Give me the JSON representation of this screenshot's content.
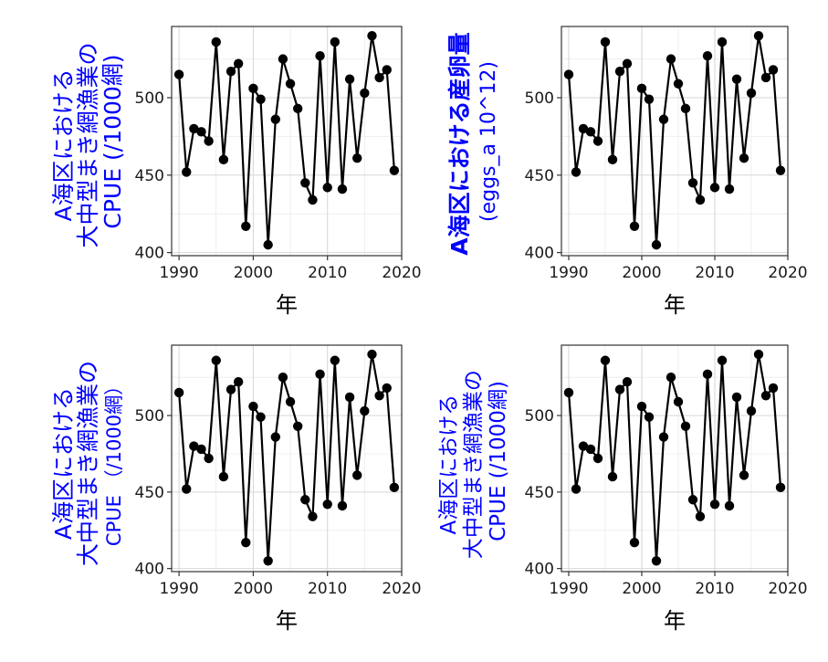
{
  "colors": {
    "ylabel": "#0000ff",
    "series": "#000000",
    "grid": "#d6d6d6"
  },
  "chart_data": [
    {
      "type": "line",
      "xlabel": "年",
      "ylabel_lines": [
        "A海区における",
        "大中型まき網漁業の",
        "CPUE (/1000網)"
      ],
      "ylabel_weight": "normal",
      "xlim": [
        1989,
        2020
      ],
      "ylim": [
        398,
        546
      ],
      "xticks": [
        1990,
        2000,
        2010,
        2020
      ],
      "yticks": [
        400,
        450,
        500
      ],
      "grid": true,
      "x": [
        1990,
        1991,
        1992,
        1993,
        1994,
        1995,
        1996,
        1997,
        1998,
        1999,
        2000,
        2001,
        2002,
        2003,
        2004,
        2005,
        2006,
        2007,
        2008,
        2009,
        2010,
        2011,
        2012,
        2013,
        2014,
        2015,
        2016,
        2017,
        2018,
        2019
      ],
      "values": [
        515,
        452,
        480,
        478,
        472,
        536,
        460,
        517,
        522,
        417,
        506,
        499,
        405,
        486,
        525,
        509,
        493,
        445,
        434,
        527,
        442,
        536,
        441,
        512,
        461,
        503,
        540,
        513,
        518,
        453
      ]
    },
    {
      "type": "line",
      "xlabel": "年",
      "ylabel_lines": [
        "A海区における産卵量",
        "(eggs_a 10^12)"
      ],
      "ylabel_weight": "mixed",
      "xlim": [
        1989,
        2020
      ],
      "ylim": [
        398,
        546
      ],
      "xticks": [
        1990,
        2000,
        2010,
        2020
      ],
      "yticks": [
        400,
        450,
        500
      ],
      "grid": true,
      "x": [
        1990,
        1991,
        1992,
        1993,
        1994,
        1995,
        1996,
        1997,
        1998,
        1999,
        2000,
        2001,
        2002,
        2003,
        2004,
        2005,
        2006,
        2007,
        2008,
        2009,
        2010,
        2011,
        2012,
        2013,
        2014,
        2015,
        2016,
        2017,
        2018,
        2019
      ],
      "values": [
        515,
        452,
        480,
        478,
        472,
        536,
        460,
        517,
        522,
        417,
        506,
        499,
        405,
        486,
        525,
        509,
        493,
        445,
        434,
        527,
        442,
        536,
        441,
        512,
        461,
        503,
        540,
        513,
        518,
        453
      ]
    },
    {
      "type": "line",
      "xlabel": "年",
      "ylabel_lines": [
        "A海区における",
        "大中型まき網漁業の",
        "CPUE （/1000網）"
      ],
      "ylabel_weight": "normal",
      "xlim": [
        1989,
        2020
      ],
      "ylim": [
        398,
        546
      ],
      "xticks": [
        1990,
        2000,
        2010,
        2020
      ],
      "yticks": [
        400,
        450,
        500
      ],
      "grid": true,
      "x": [
        1990,
        1991,
        1992,
        1993,
        1994,
        1995,
        1996,
        1997,
        1998,
        1999,
        2000,
        2001,
        2002,
        2003,
        2004,
        2005,
        2006,
        2007,
        2008,
        2009,
        2010,
        2011,
        2012,
        2013,
        2014,
        2015,
        2016,
        2017,
        2018,
        2019
      ],
      "values": [
        515,
        452,
        480,
        478,
        472,
        536,
        460,
        517,
        522,
        417,
        506,
        499,
        405,
        486,
        525,
        509,
        493,
        445,
        434,
        527,
        442,
        536,
        441,
        512,
        461,
        503,
        540,
        513,
        518,
        453
      ]
    },
    {
      "type": "line",
      "xlabel": "年",
      "ylabel_lines": [
        "A海区における",
        "大中型まき網漁業の",
        "CPUE (/1000網)"
      ],
      "ylabel_weight": "normal",
      "xlim": [
        1989,
        2020
      ],
      "ylim": [
        398,
        546
      ],
      "xticks": [
        1990,
        2000,
        2010,
        2020
      ],
      "yticks": [
        400,
        450,
        500
      ],
      "grid": true,
      "x": [
        1990,
        1991,
        1992,
        1993,
        1994,
        1995,
        1996,
        1997,
        1998,
        1999,
        2000,
        2001,
        2002,
        2003,
        2004,
        2005,
        2006,
        2007,
        2008,
        2009,
        2010,
        2011,
        2012,
        2013,
        2014,
        2015,
        2016,
        2017,
        2018,
        2019
      ],
      "values": [
        515,
        452,
        480,
        478,
        472,
        536,
        460,
        517,
        522,
        417,
        506,
        499,
        405,
        486,
        525,
        509,
        493,
        445,
        434,
        527,
        442,
        536,
        441,
        512,
        461,
        503,
        540,
        513,
        518,
        453
      ]
    }
  ]
}
